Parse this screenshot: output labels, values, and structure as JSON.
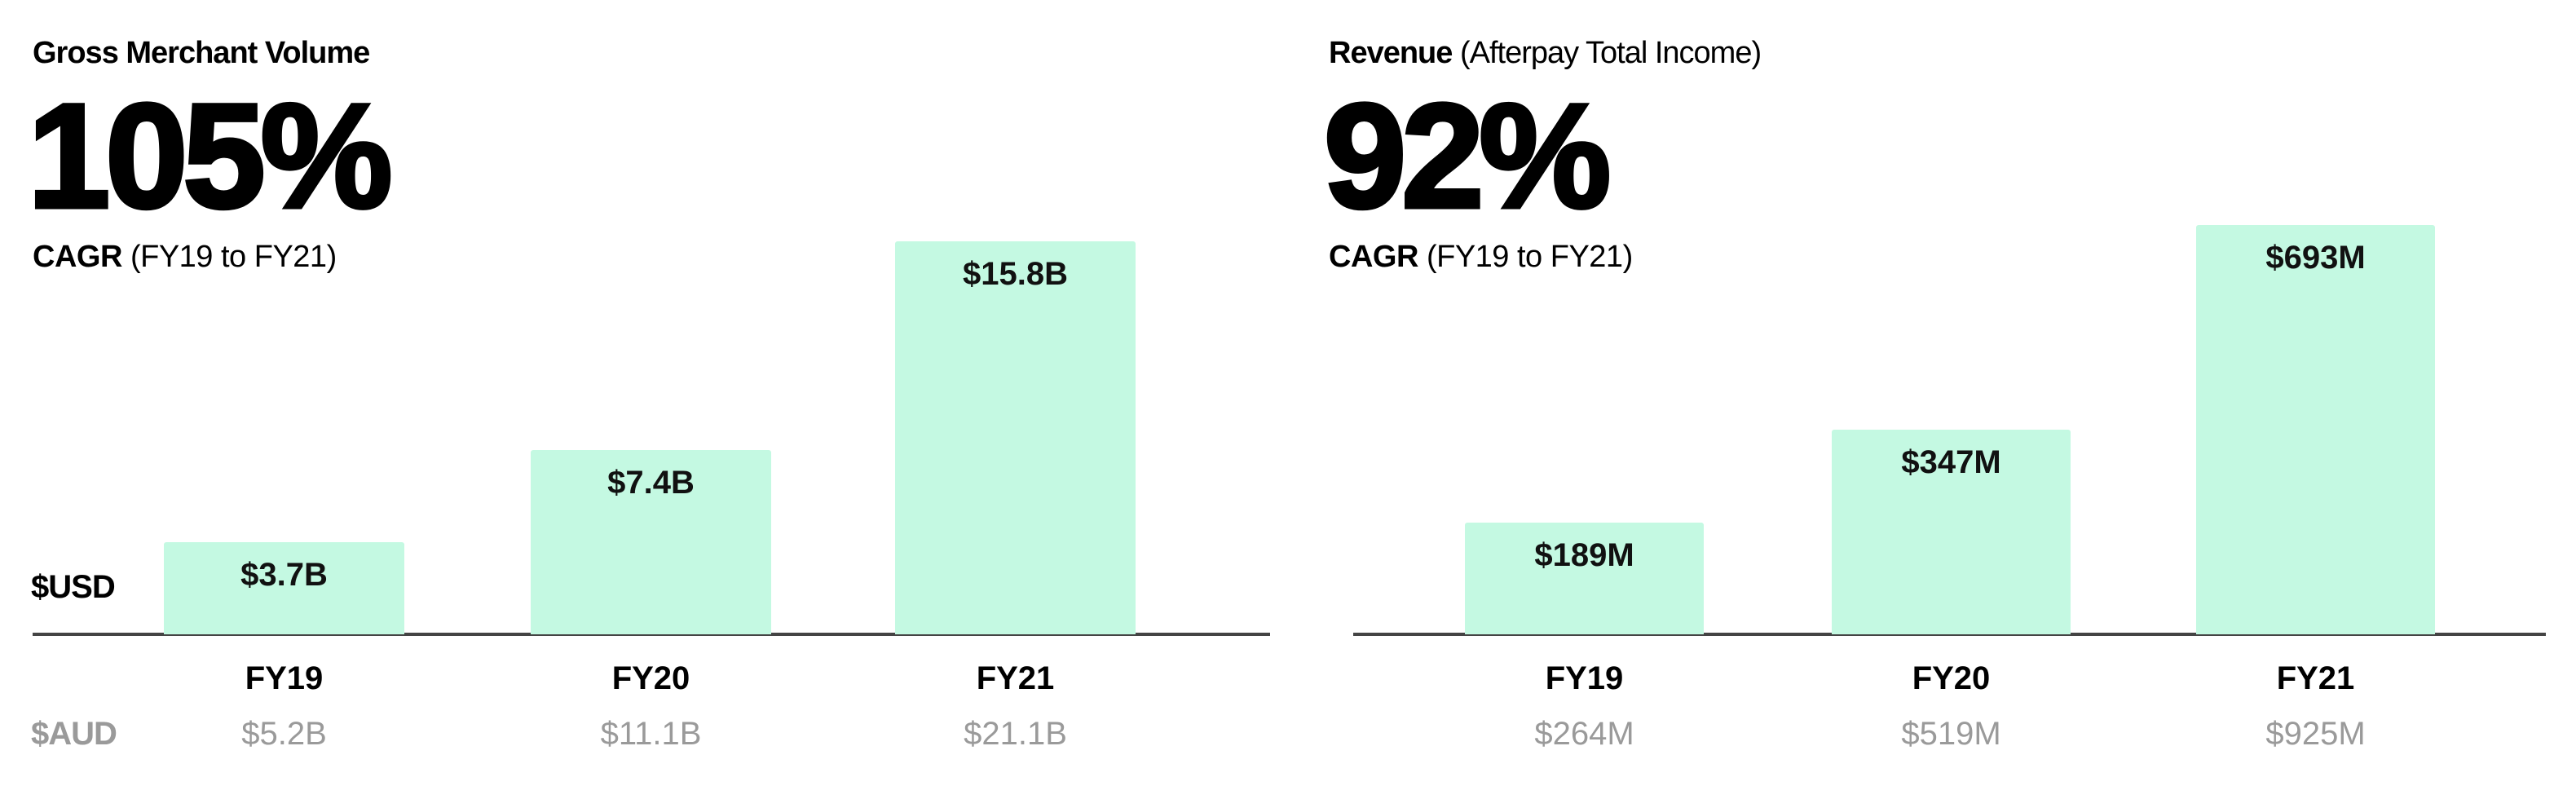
{
  "chart_data": [
    {
      "type": "bar",
      "title": "Gross Merchant Volume",
      "title_suffix": "",
      "headline": "105%",
      "cagr_label": "CAGR",
      "cagr_range": "(FY19 to FY21)",
      "primary_unit_label": "$USD",
      "secondary_unit_label": "$AUD",
      "categories": [
        "FY19",
        "FY20",
        "FY21"
      ],
      "values": [
        3.7,
        7.4,
        15.8
      ],
      "value_labels": [
        "$3.7B",
        "$7.4B",
        "$15.8B"
      ],
      "secondary_labels": [
        "$5.2B",
        "$11.1B",
        "$21.1B"
      ],
      "ylim": [
        0,
        15.8
      ],
      "grid": false,
      "bar_color": "#c4f9e2"
    },
    {
      "type": "bar",
      "title": "Revenue",
      "title_suffix": "(Afterpay Total Income)",
      "headline": "92%",
      "cagr_label": "CAGR",
      "cagr_range": "(FY19 to FY21)",
      "categories": [
        "FY19",
        "FY20",
        "FY21"
      ],
      "values": [
        189,
        347,
        693
      ],
      "value_labels": [
        "$189M",
        "$347M",
        "$693M"
      ],
      "secondary_labels": [
        "$264M",
        "$519M",
        "$925M"
      ],
      "ylim": [
        0,
        693
      ],
      "grid": false,
      "bar_color": "#c4f9e2"
    }
  ]
}
